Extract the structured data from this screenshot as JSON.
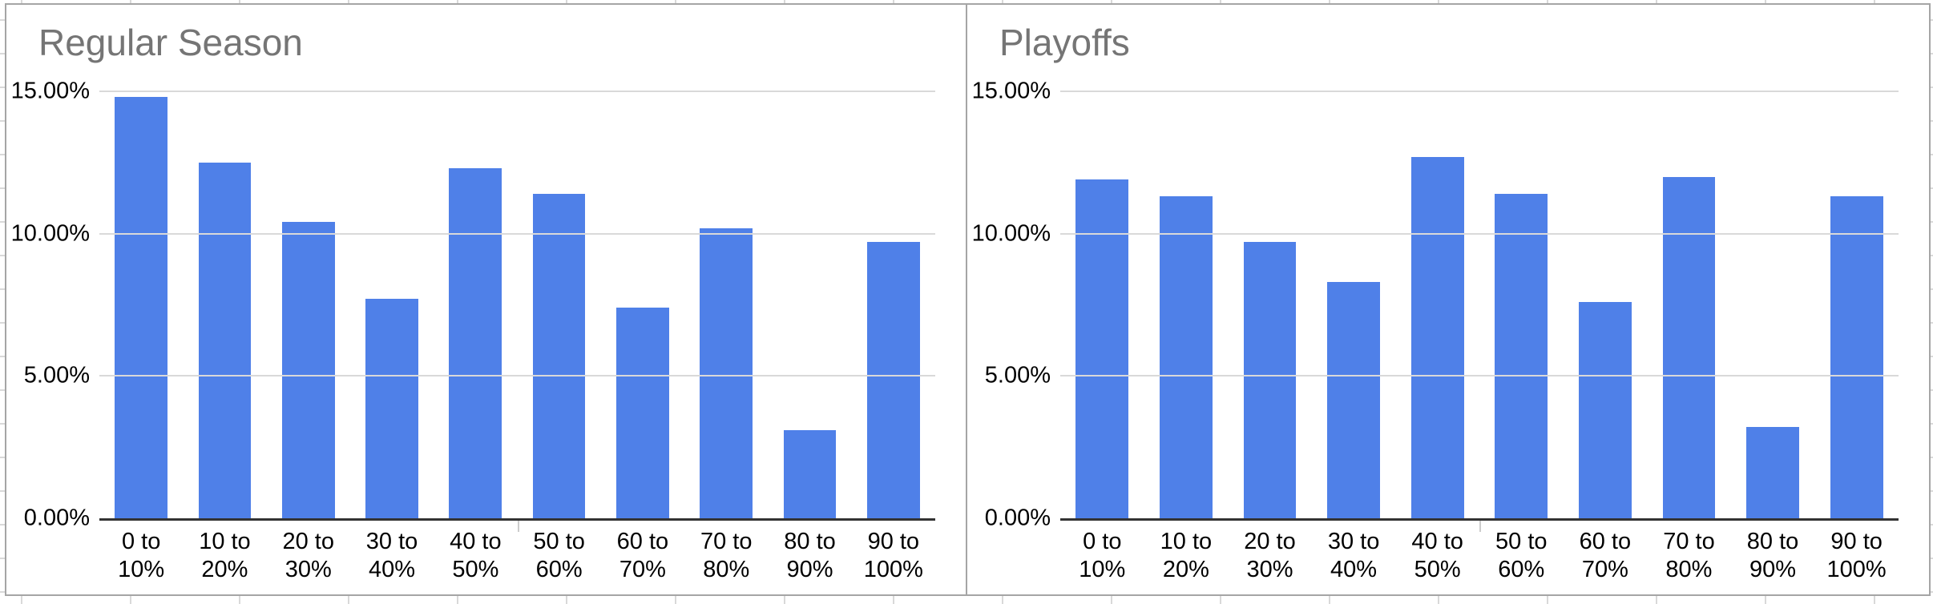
{
  "colors": {
    "bar_fill": "#4f80e8",
    "title_text": "#757575",
    "axis_text": "#000000",
    "gridline": "#d9d9d9",
    "axis_line": "#333333",
    "chart_border": "#a5a5a5",
    "sheet_gridline": "#d9d9d9",
    "background": "#ffffff"
  },
  "y_axis": {
    "tick_labels": [
      "15.00%",
      "10.00%",
      "5.00%",
      "0.00%"
    ],
    "tick_values": [
      15,
      10,
      5,
      0
    ]
  },
  "chart_data": [
    {
      "type": "bar",
      "title": "Regular Season",
      "categories": [
        [
          "0 to",
          "10%"
        ],
        [
          "10 to",
          "20%"
        ],
        [
          "20 to",
          "30%"
        ],
        [
          "30 to",
          "40%"
        ],
        [
          "40 to",
          "50%"
        ],
        [
          "50 to",
          "60%"
        ],
        [
          "60 to",
          "70%"
        ],
        [
          "70 to",
          "80%"
        ],
        [
          "80 to",
          "90%"
        ],
        [
          "90 to",
          "100%"
        ]
      ],
      "values": [
        14.8,
        12.5,
        10.4,
        7.7,
        12.3,
        11.4,
        7.4,
        10.2,
        3.1,
        9.7
      ],
      "xlabel": "",
      "ylabel": "",
      "ylim": [
        0,
        15
      ],
      "grid": true,
      "legend": "none"
    },
    {
      "type": "bar",
      "title": "Playoffs",
      "categories": [
        [
          "0 to",
          "10%"
        ],
        [
          "10 to",
          "20%"
        ],
        [
          "20 to",
          "30%"
        ],
        [
          "30 to",
          "40%"
        ],
        [
          "40 to",
          "50%"
        ],
        [
          "50 to",
          "60%"
        ],
        [
          "60 to",
          "70%"
        ],
        [
          "70 to",
          "80%"
        ],
        [
          "80 to",
          "90%"
        ],
        [
          "90 to",
          "100%"
        ]
      ],
      "values": [
        11.9,
        11.3,
        9.7,
        8.3,
        12.7,
        11.4,
        7.6,
        12.0,
        3.2,
        11.3
      ],
      "xlabel": "",
      "ylabel": "",
      "ylim": [
        0,
        15
      ],
      "grid": true,
      "legend": "none"
    }
  ]
}
